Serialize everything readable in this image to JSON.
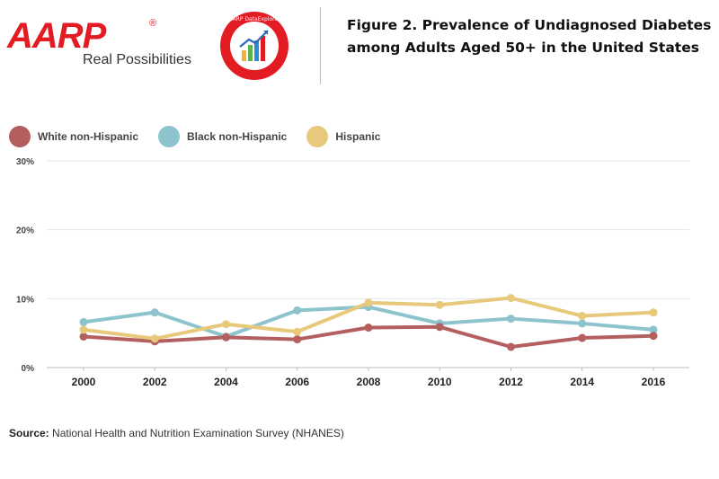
{
  "header": {
    "logo_text": "AARP",
    "logo_registered": "®",
    "tagline": "Real Possibilities",
    "badge_text": "AARP DataExplorer",
    "figure_title_line1": "Figure 2. Prevalence of Undiagnosed Diabetes",
    "figure_title_line2": "among Adults Aged 50+ in the United States"
  },
  "colors": {
    "brand_red": "#e31b23",
    "white": "#b35f5f",
    "black": "#8cc3cd",
    "hispanic": "#e8c97c",
    "grid": "#e6e6e6"
  },
  "chart_data": {
    "type": "line",
    "title": "Figure 2. Prevalence of Undiagnosed Diabetes among Adults Aged 50+ in the United States",
    "xlabel": "",
    "ylabel": "",
    "x": [
      "2000",
      "2002",
      "2004",
      "2006",
      "2008",
      "2010",
      "2012",
      "2014",
      "2016"
    ],
    "ylim": [
      0,
      30
    ],
    "yticks": [
      "0%",
      "10%",
      "20%",
      "30%"
    ],
    "ytick_values": [
      0,
      10,
      20,
      30
    ],
    "grid": true,
    "legend_position": "top-left",
    "series": [
      {
        "name": "White non-Hispanic",
        "color": "#b35f5f",
        "values": [
          4.5,
          3.8,
          4.4,
          4.1,
          5.8,
          5.9,
          3.0,
          4.3,
          4.6
        ]
      },
      {
        "name": "Black non-Hispanic",
        "color": "#8cc3cd",
        "values": [
          6.6,
          8.0,
          4.5,
          8.3,
          8.8,
          6.4,
          7.1,
          6.4,
          5.5
        ]
      },
      {
        "name": "Hispanic",
        "color": "#e8c97c",
        "values": [
          5.5,
          4.2,
          6.3,
          5.2,
          9.4,
          9.1,
          10.1,
          7.5,
          8.0
        ]
      }
    ]
  },
  "source": {
    "label": "Source:",
    "text": "National Health and Nutrition Examination Survey (NHANES)"
  }
}
